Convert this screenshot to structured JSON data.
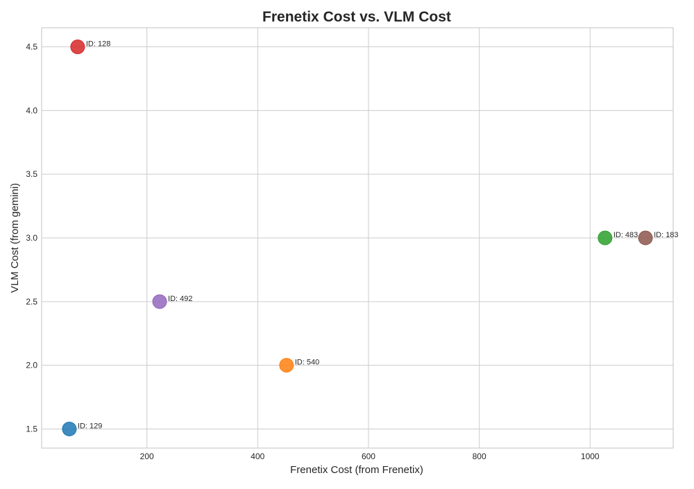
{
  "chart_data": {
    "type": "scatter",
    "title": "Frenetix Cost vs. VLM Cost",
    "xlabel": "Frenetix Cost (from Frenetix)",
    "ylabel": "VLM Cost (from gemini)",
    "xlim": [
      10,
      1150
    ],
    "ylim": [
      1.35,
      4.65
    ],
    "xticks": [
      200,
      400,
      600,
      800,
      1000
    ],
    "xtick_labels": [
      "200",
      "400",
      "600",
      "800",
      "1000"
    ],
    "yticks": [
      1.5,
      2.0,
      2.5,
      3.0,
      3.5,
      4.0,
      4.5
    ],
    "ytick_labels": [
      "1.5",
      "2.0",
      "2.5",
      "3.0",
      "3.5",
      "4.0",
      "4.5"
    ],
    "grid": true,
    "legend": "none",
    "points": [
      {
        "x": 60,
        "y": 1.5,
        "label": "ID: 129",
        "color": "#1f77b4"
      },
      {
        "x": 75,
        "y": 4.5,
        "label": "ID: 128",
        "color": "#d62728"
      },
      {
        "x": 223,
        "y": 2.5,
        "label": "ID: 492",
        "color": "#9467bd"
      },
      {
        "x": 452,
        "y": 2.0,
        "label": "ID: 540",
        "color": "#ff7f0e"
      },
      {
        "x": 1027,
        "y": 3.0,
        "label": "ID: 483",
        "color": "#2ca02c"
      },
      {
        "x": 1100,
        "y": 3.0,
        "label": "ID: 183",
        "color": "#8c564b"
      }
    ]
  }
}
